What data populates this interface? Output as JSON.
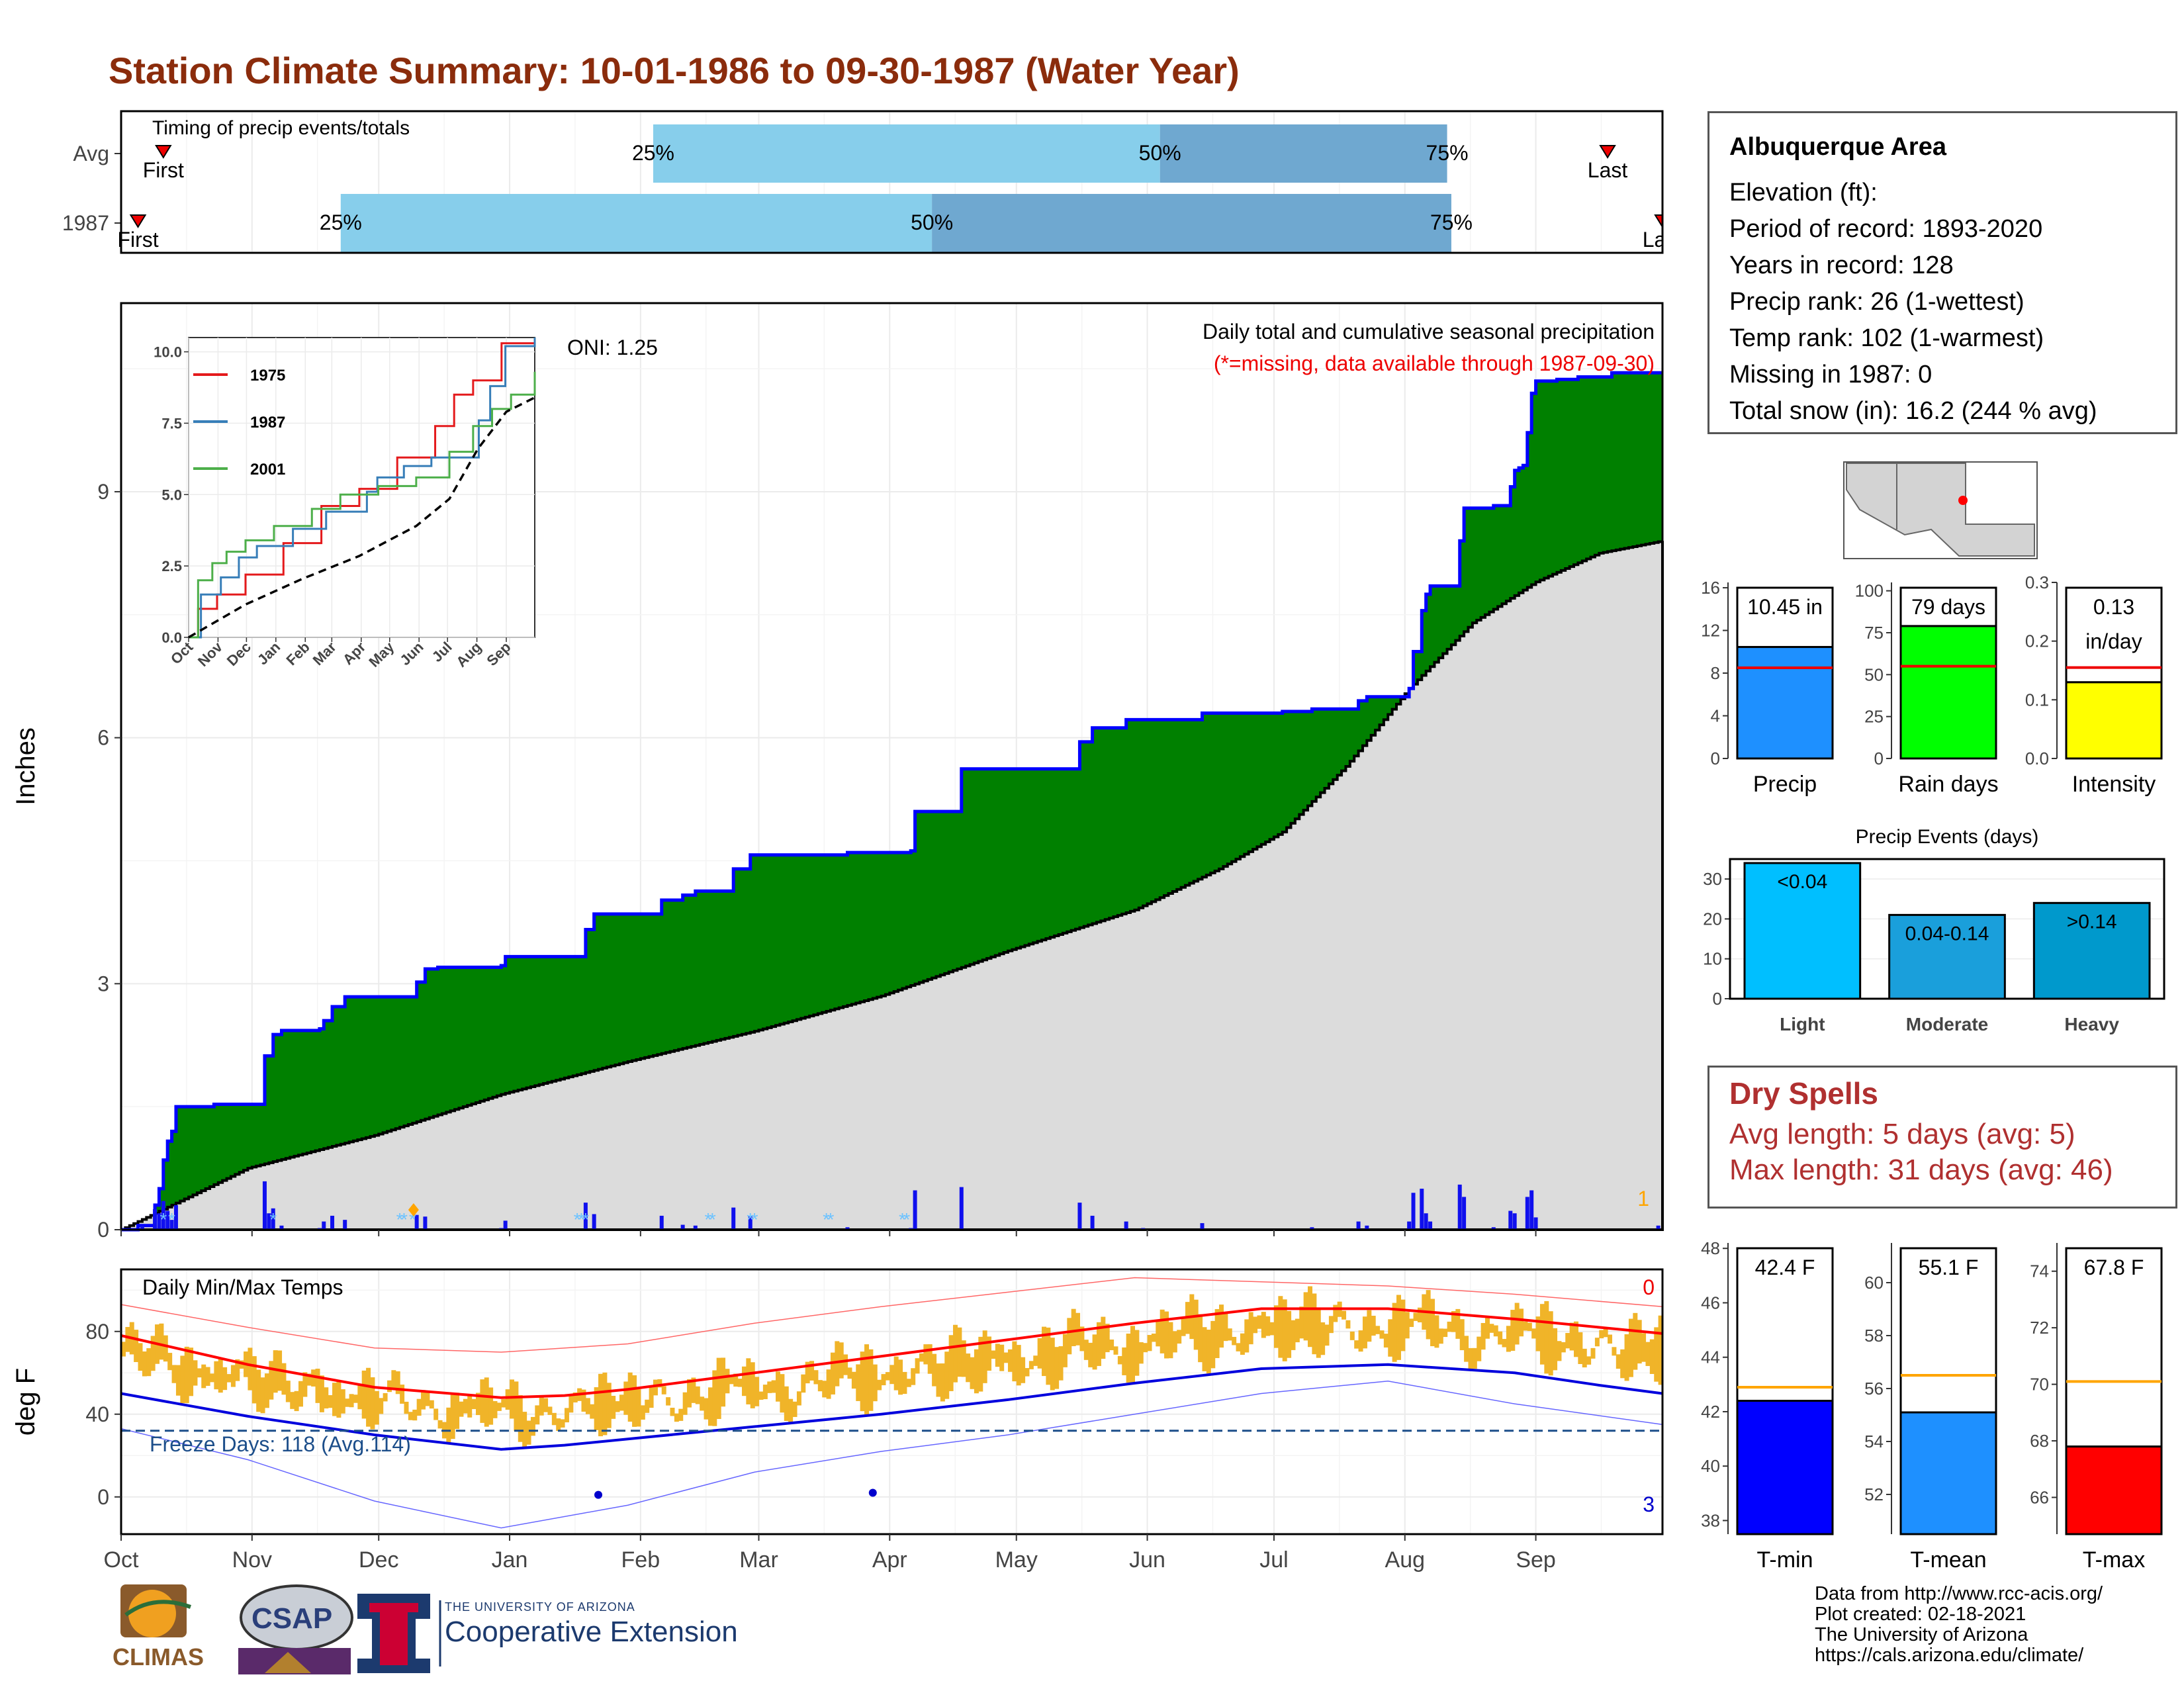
{
  "title": "Station Climate Summary: 10-01-1986 to 09-30-1987 (Water Year)",
  "station": {
    "name": "Albuquerque Area",
    "lines": [
      "Elevation (ft):",
      "Period of record: 1893-2020",
      "Years in record: 128",
      "Precip rank: 26 (1-wettest)",
      "Temp rank: 102 (1-warmest)",
      "Missing in 1987: 0",
      "Total snow (in): 16.2 (244 % avg)"
    ]
  },
  "dry_spells": {
    "title": "Dry Spells",
    "avg_length": "Avg length: 5 days (avg: 5)",
    "max_length": "Max length: 31 days (avg: 46)"
  },
  "credits": [
    "Data from http://www.rcc-acis.org/",
    "Plot created: 02-18-2021",
    "The University of Arizona",
    "https://cals.arizona.edu/climate/"
  ],
  "logos": {
    "climas": "CLIMAS",
    "csap": "CSAP",
    "ua_small": "THE UNIVERSITY OF ARIZONA",
    "ua_big": "Cooperative Extension"
  },
  "months": [
    "Oct",
    "Nov",
    "Dec",
    "Jan",
    "Feb",
    "Mar",
    "Apr",
    "May",
    "Jun",
    "Jul",
    "Aug",
    "Sep"
  ],
  "colors": {
    "title": "#8b2c0c",
    "precip_fill": "#008000",
    "precip_line": "#0000ff",
    "avg_fill": "#dcdcdc",
    "tmax_line": "#ff0000",
    "tmin_line": "#0000dd",
    "temp_bars": "#f0b429",
    "freeze_line": "#1c4e8a",
    "light_blue": "#87ceeb",
    "mid_blue": "#6fa8d0"
  },
  "chart_data": [
    {
      "id": "timing",
      "type": "bar",
      "title": "Timing of precip events/totals",
      "rows": [
        {
          "label": "Avg",
          "first_day": 10,
          "q25_day": 126,
          "q50_day": 246,
          "q75_day": 314,
          "last_day": 352,
          "first_label": "First",
          "last_label": "Last"
        },
        {
          "label": "1987",
          "first_day": 4,
          "q25_day": 52,
          "q50_day": 192,
          "q75_day": 315,
          "last_day": 365,
          "first_label": "First",
          "last_label": "Last"
        }
      ],
      "quantile_labels": [
        "25%",
        "50%",
        "75%"
      ]
    },
    {
      "id": "precip-main",
      "type": "area",
      "ylabel": "Inches",
      "ylim": [
        0,
        11.3
      ],
      "yticks": [
        0,
        3,
        6,
        9
      ],
      "annotation_oni": "ONI: 1.25",
      "annotation_title": "Daily total and cumulative seasonal precipitation",
      "annotation_missing": "(*=missing, data available through 1987-09-30)",
      "corner_count": "1",
      "cumulative_1987": [
        [
          0,
          0
        ],
        [
          4,
          0.05
        ],
        [
          8,
          0.3
        ],
        [
          9,
          0.5
        ],
        [
          10,
          0.85
        ],
        [
          11,
          1.08
        ],
        [
          12,
          1.2
        ],
        [
          13,
          1.5
        ],
        [
          22,
          1.53
        ],
        [
          33,
          1.53
        ],
        [
          34,
          2.12
        ],
        [
          36,
          2.38
        ],
        [
          38,
          2.43
        ],
        [
          47,
          2.45
        ],
        [
          48,
          2.55
        ],
        [
          50,
          2.72
        ],
        [
          53,
          2.84
        ],
        [
          68,
          2.84
        ],
        [
          70,
          3.02
        ],
        [
          72,
          3.18
        ],
        [
          75,
          3.2
        ],
        [
          90,
          3.22
        ],
        [
          91,
          3.33
        ],
        [
          108,
          3.33
        ],
        [
          110,
          3.66
        ],
        [
          112,
          3.85
        ],
        [
          125,
          3.85
        ],
        [
          128,
          4.02
        ],
        [
          133,
          4.08
        ],
        [
          136,
          4.13
        ],
        [
          143,
          4.13
        ],
        [
          145,
          4.4
        ],
        [
          149,
          4.57
        ],
        [
          168,
          4.57
        ],
        [
          172,
          4.6
        ],
        [
          187,
          4.62
        ],
        [
          188,
          5.1
        ],
        [
          198,
          5.1
        ],
        [
          199,
          5.62
        ],
        [
          226,
          5.62
        ],
        [
          227,
          5.95
        ],
        [
          230,
          6.12
        ],
        [
          238,
          6.22
        ],
        [
          255,
          6.22
        ],
        [
          256,
          6.3
        ],
        [
          275,
          6.32
        ],
        [
          282,
          6.35
        ],
        [
          293,
          6.45
        ],
        [
          295,
          6.5
        ],
        [
          305,
          6.6
        ],
        [
          306,
          7.05
        ],
        [
          308,
          7.55
        ],
        [
          309,
          7.75
        ],
        [
          310,
          7.85
        ],
        [
          317,
          8.4
        ],
        [
          318,
          8.8
        ],
        [
          325,
          8.83
        ],
        [
          329,
          9.06
        ],
        [
          330,
          9.26
        ],
        [
          331,
          9.29
        ],
        [
          332,
          9.32
        ],
        [
          333,
          9.72
        ],
        [
          334,
          10.2
        ],
        [
          335,
          10.35
        ],
        [
          340,
          10.37
        ],
        [
          345,
          10.4
        ],
        [
          352,
          10.4
        ],
        [
          353,
          10.45
        ],
        [
          365,
          10.45
        ]
      ],
      "average_cumulative": [
        [
          0,
          0
        ],
        [
          30,
          0.75
        ],
        [
          60,
          1.15
        ],
        [
          90,
          1.65
        ],
        [
          120,
          2.05
        ],
        [
          150,
          2.42
        ],
        [
          180,
          2.85
        ],
        [
          210,
          3.4
        ],
        [
          240,
          3.9
        ],
        [
          260,
          4.4
        ],
        [
          275,
          4.85
        ],
        [
          290,
          5.65
        ],
        [
          305,
          6.6
        ],
        [
          320,
          7.4
        ],
        [
          335,
          7.9
        ],
        [
          350,
          8.25
        ],
        [
          365,
          8.4
        ]
      ],
      "daily_1987": [
        [
          5,
          0.05
        ],
        [
          8,
          0.25
        ],
        [
          9,
          0.2
        ],
        [
          10,
          0.35
        ],
        [
          11,
          0.23
        ],
        [
          12,
          0.12
        ],
        [
          13,
          0.3
        ],
        [
          34,
          0.59
        ],
        [
          35,
          0.2
        ],
        [
          36,
          0.26
        ],
        [
          38,
          0.05
        ],
        [
          47,
          0.02
        ],
        [
          48,
          0.1
        ],
        [
          50,
          0.17
        ],
        [
          53,
          0.12
        ],
        [
          70,
          0.18
        ],
        [
          72,
          0.16
        ],
        [
          90,
          0.02
        ],
        [
          91,
          0.11
        ],
        [
          110,
          0.33
        ],
        [
          112,
          0.19
        ],
        [
          128,
          0.17
        ],
        [
          133,
          0.06
        ],
        [
          136,
          0.05
        ],
        [
          145,
          0.27
        ],
        [
          149,
          0.17
        ],
        [
          172,
          0.03
        ],
        [
          187,
          0.02
        ],
        [
          188,
          0.48
        ],
        [
          199,
          0.52
        ],
        [
          227,
          0.33
        ],
        [
          230,
          0.17
        ],
        [
          238,
          0.1
        ],
        [
          242,
          0.02
        ],
        [
          256,
          0.08
        ],
        [
          282,
          0.03
        ],
        [
          293,
          0.1
        ],
        [
          295,
          0.05
        ],
        [
          305,
          0.1
        ],
        [
          306,
          0.45
        ],
        [
          308,
          0.5
        ],
        [
          309,
          0.2
        ],
        [
          310,
          0.1
        ],
        [
          317,
          0.55
        ],
        [
          318,
          0.4
        ],
        [
          325,
          0.03
        ],
        [
          329,
          0.23
        ],
        [
          330,
          0.2
        ],
        [
          333,
          0.4
        ],
        [
          334,
          0.48
        ],
        [
          335,
          0.15
        ],
        [
          364,
          0.05
        ]
      ],
      "missing_marks_days": [
        10,
        12,
        36,
        66,
        67,
        69,
        108,
        109,
        110,
        139,
        140,
        149,
        150,
        167,
        168,
        185,
        186
      ]
    },
    {
      "id": "inset-cumulative",
      "type": "line",
      "ylim": [
        0,
        10.5
      ],
      "yticks": [
        "0.0",
        "2.5",
        "5.0",
        "7.5",
        "10.0"
      ],
      "series": [
        {
          "name": "1975",
          "color": "#e41a1c",
          "points": [
            [
              0,
              0
            ],
            [
              10,
              1.0
            ],
            [
              30,
              1.5
            ],
            [
              60,
              2.2
            ],
            [
              100,
              3.3
            ],
            [
              140,
              4.6
            ],
            [
              180,
              5.2
            ],
            [
              220,
              6.3
            ],
            [
              260,
              7.4
            ],
            [
              280,
              8.5
            ],
            [
              300,
              9.0
            ],
            [
              330,
              10.3
            ],
            [
              365,
              11.0
            ]
          ]
        },
        {
          "name": "1987",
          "color": "#377eb8",
          "points": [
            [
              0,
              0
            ],
            [
              13,
              1.5
            ],
            [
              34,
              2.1
            ],
            [
              53,
              2.8
            ],
            [
              72,
              3.2
            ],
            [
              110,
              3.8
            ],
            [
              145,
              4.4
            ],
            [
              188,
              5.1
            ],
            [
              199,
              5.6
            ],
            [
              227,
              6.0
            ],
            [
              256,
              6.3
            ],
            [
              306,
              7.6
            ],
            [
              318,
              8.8
            ],
            [
              334,
              10.2
            ],
            [
              365,
              10.5
            ]
          ]
        },
        {
          "name": "2001",
          "color": "#4daf4a",
          "points": [
            [
              0,
              0
            ],
            [
              10,
              2.0
            ],
            [
              25,
              2.6
            ],
            [
              40,
              3.0
            ],
            [
              60,
              3.4
            ],
            [
              90,
              3.9
            ],
            [
              130,
              4.5
            ],
            [
              160,
              5.0
            ],
            [
              200,
              5.3
            ],
            [
              240,
              5.6
            ],
            [
              275,
              6.5
            ],
            [
              300,
              7.4
            ],
            [
              320,
              8.0
            ],
            [
              340,
              8.5
            ],
            [
              365,
              9.3
            ]
          ]
        },
        {
          "name": "Average",
          "color": "#000000",
          "points": [
            [
              0,
              0
            ],
            [
              60,
              1.15
            ],
            [
              120,
              2.05
            ],
            [
              180,
              2.85
            ],
            [
              240,
              3.9
            ],
            [
              275,
              4.85
            ],
            [
              305,
              6.6
            ],
            [
              335,
              7.9
            ],
            [
              365,
              8.4
            ]
          ]
        }
      ]
    },
    {
      "id": "temps",
      "type": "line",
      "title": "Daily Min/Max Temps",
      "ylabel": "deg F",
      "ylim": [
        -18,
        110
      ],
      "yticks": [
        0,
        40,
        80
      ],
      "freeze_label": "Freeze Days: 118 (Avg.114)",
      "freeze_line": 32,
      "corner_top": "0",
      "corner_bottom": "3",
      "avg_tmax": [
        [
          0,
          78
        ],
        [
          30,
          64
        ],
        [
          60,
          53
        ],
        [
          90,
          48
        ],
        [
          105,
          49
        ],
        [
          120,
          52
        ],
        [
          150,
          60
        ],
        [
          180,
          68
        ],
        [
          210,
          76
        ],
        [
          240,
          84
        ],
        [
          270,
          91
        ],
        [
          300,
          91
        ],
        [
          330,
          86
        ],
        [
          350,
          82
        ],
        [
          365,
          79
        ]
      ],
      "avg_tmin": [
        [
          0,
          50
        ],
        [
          30,
          39
        ],
        [
          60,
          30
        ],
        [
          90,
          23
        ],
        [
          105,
          25
        ],
        [
          120,
          28
        ],
        [
          150,
          34
        ],
        [
          180,
          40
        ],
        [
          210,
          47
        ],
        [
          240,
          55
        ],
        [
          270,
          62
        ],
        [
          300,
          64
        ],
        [
          330,
          60
        ],
        [
          350,
          54
        ],
        [
          365,
          50
        ]
      ],
      "record_max": [
        [
          0,
          93
        ],
        [
          30,
          82
        ],
        [
          60,
          72
        ],
        [
          90,
          70
        ],
        [
          120,
          74
        ],
        [
          150,
          84
        ],
        [
          180,
          92
        ],
        [
          210,
          99
        ],
        [
          240,
          106
        ],
        [
          270,
          104
        ],
        [
          300,
          102
        ],
        [
          330,
          98
        ],
        [
          365,
          92
        ]
      ],
      "record_min": [
        [
          0,
          33
        ],
        [
          30,
          18
        ],
        [
          60,
          -2
        ],
        [
          90,
          -15
        ],
        [
          120,
          -4
        ],
        [
          150,
          12
        ],
        [
          180,
          22
        ],
        [
          210,
          30
        ],
        [
          240,
          40
        ],
        [
          270,
          50
        ],
        [
          300,
          56
        ],
        [
          330,
          45
        ],
        [
          365,
          35
        ]
      ]
    },
    {
      "id": "precip-small",
      "type": "bar",
      "categories": [
        "Precip",
        "Rain days",
        "Intensity"
      ],
      "values": [
        10.45,
        79,
        0.13
      ],
      "averages": [
        8.5,
        55,
        0.155
      ],
      "labels": [
        "10.45 in",
        "79 days",
        "0.13",
        "in/day"
      ],
      "ylims": [
        [
          0,
          16.5
        ],
        [
          0,
          105
        ],
        [
          0,
          0.3
        ]
      ],
      "yticks": [
        [
          "0",
          "4",
          "8",
          "12",
          "16"
        ],
        [
          "0",
          "25",
          "50",
          "75",
          "100"
        ],
        [
          "0.0",
          "0.1",
          "0.2",
          "0.3"
        ]
      ],
      "colors": [
        "#1e90ff",
        "#00ff00",
        "#ffff00"
      ]
    },
    {
      "id": "events",
      "type": "bar",
      "title": "Precip Events (days)",
      "categories": [
        "Light",
        "Moderate",
        "Heavy"
      ],
      "values": [
        34,
        21,
        24
      ],
      "labels": [
        "<0.04",
        "0.04-0.14",
        ">0.14"
      ],
      "ylim": [
        0,
        35
      ],
      "yticks": [
        0,
        10,
        20,
        30
      ],
      "colors": [
        "#00bfff",
        "#1a9fdb",
        "#0099cc"
      ]
    },
    {
      "id": "temp-small",
      "type": "bar",
      "categories": [
        "T-min",
        "T-mean",
        "T-max"
      ],
      "values": [
        42.4,
        55.1,
        67.8
      ],
      "averages": [
        42.9,
        56.5,
        70.1
      ],
      "labels": [
        "42.4 F",
        "55.1 F",
        "67.8 F"
      ],
      "ylims": [
        [
          37.5,
          48.2
        ],
        [
          50.5,
          61.5
        ],
        [
          64.7,
          75
        ]
      ],
      "yticks": [
        [
          "38",
          "40",
          "42",
          "44",
          "46",
          "48"
        ],
        [
          "52",
          "54",
          "56",
          "58",
          "60"
        ],
        [
          "66",
          "68",
          "70",
          "72",
          "74"
        ]
      ],
      "colors": [
        "#0000ff",
        "#1e90ff",
        "#ff0000"
      ]
    }
  ]
}
